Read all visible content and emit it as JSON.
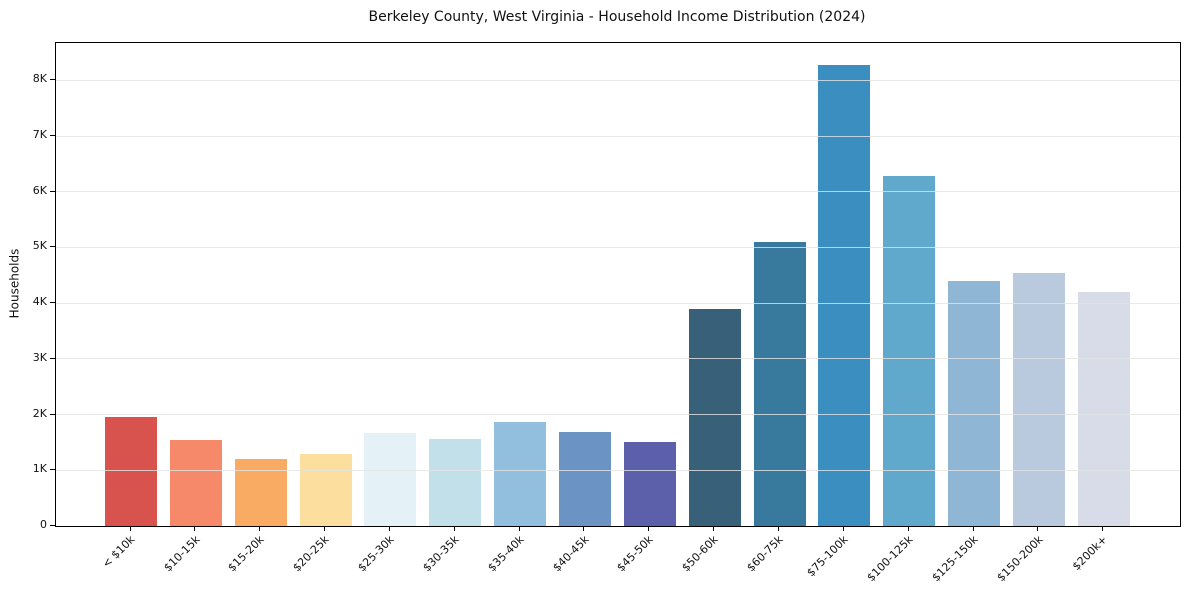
{
  "chart_data": {
    "type": "bar",
    "title": "Berkeley County, West Virginia - Household Income Distribution (2024)",
    "xlabel": "",
    "ylabel": "Households",
    "categories": [
      "< $10k",
      "$10-15k",
      "$15-20k",
      "$20-25k",
      "$25-30k",
      "$30-35k",
      "$35-40k",
      "$40-45k",
      "$45-50k",
      "$50-60k",
      "$60-75k",
      "$75-100k",
      "$100-125k",
      "$125-150k",
      "$150-200k",
      "$200k+"
    ],
    "values": [
      1950,
      1550,
      1200,
      1290,
      1670,
      1560,
      1870,
      1690,
      1500,
      3890,
      5090,
      8280,
      6290,
      4400,
      4550,
      4200
    ],
    "bar_colors": [
      "#d9534e",
      "#f5896a",
      "#f9ab63",
      "#fcdf9e",
      "#e4f1f6",
      "#c1e0ea",
      "#91bfdd",
      "#6b93c4",
      "#5c60aa",
      "#386078",
      "#38799e",
      "#3a8ec0",
      "#61a8cd",
      "#90b6d6",
      "#b9cade",
      "#d8dbe8"
    ],
    "ytick_labels": [
      "0",
      "1K",
      "2K",
      "3K",
      "4K",
      "5K",
      "6K",
      "7K",
      "8K"
    ],
    "ytick_values": [
      0,
      1000,
      2000,
      3000,
      4000,
      5000,
      6000,
      7000,
      8000
    ],
    "ylim": [
      0,
      8670
    ],
    "grid": "horizontal",
    "grid_color": "#e6e6e6",
    "spine_color": "#000000",
    "background_color": "#ffffff",
    "legend": "none"
  }
}
